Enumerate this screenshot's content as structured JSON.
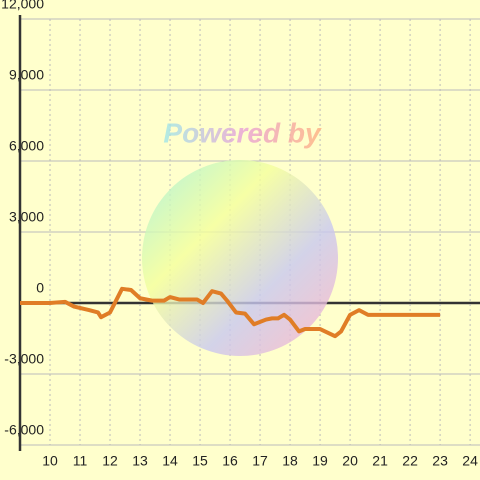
{
  "chart_data": {
    "type": "line",
    "watermark": "Powered by",
    "x": [
      9,
      10,
      10.5,
      10.8,
      11.3,
      11.6,
      11.7,
      12,
      12.4,
      12.7,
      13,
      13.4,
      13.8,
      14,
      14.3,
      14.9,
      15.1,
      15.4,
      15.7,
      15.9,
      16.2,
      16.5,
      16.8,
      17.2,
      17.4,
      17.6,
      17.8,
      18,
      18.3,
      18.5,
      19,
      19.5,
      19.7,
      20,
      20.3,
      20.6,
      21,
      23
    ],
    "series": [
      {
        "color": "#e07d26",
        "values": [
          0,
          0,
          50,
          -150,
          -300,
          -400,
          -600,
          -400,
          600,
          550,
          200,
          100,
          100,
          250,
          150,
          150,
          0,
          500,
          400,
          100,
          -400,
          -450,
          -900,
          -700,
          -650,
          -650,
          -500,
          -700,
          -1200,
          -1100,
          -1100,
          -1400,
          -1200,
          -500,
          -300,
          -500,
          -500,
          -500
        ]
      }
    ],
    "xlim": [
      9,
      24.33
    ],
    "xticks": [
      10,
      11,
      12,
      13,
      14,
      15,
      16,
      17,
      18,
      19,
      20,
      21,
      22,
      23,
      24
    ],
    "ylim": [
      -6000,
      12000
    ],
    "yticks": [
      {
        "value": -6000,
        "label": "-6,000"
      },
      {
        "value": -3000,
        "label": "-3,000"
      },
      0,
      {
        "value": 3000,
        "label": "3,000"
      },
      {
        "value": 6000,
        "label": "6,000"
      },
      {
        "value": 9000,
        "label": "9,000"
      },
      {
        "value": 12000,
        "label": "12,000"
      }
    ],
    "grid": true
  }
}
